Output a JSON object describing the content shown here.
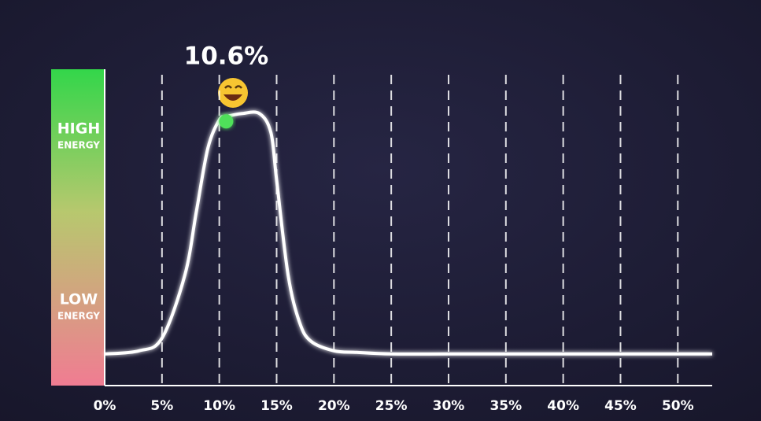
{
  "chart_data": {
    "type": "line",
    "high_label": [
      "HIGH",
      "ENERGY"
    ],
    "low_label": [
      "LOW",
      "ENERGY"
    ],
    "x": [
      0,
      3,
      5,
      7,
      8,
      9,
      10,
      10.6,
      12,
      13.5,
      14.5,
      15,
      16,
      17,
      18,
      20,
      22,
      25,
      30,
      35,
      40,
      45,
      50,
      53
    ],
    "values": [
      10,
      11,
      15,
      35,
      55,
      75,
      84,
      85,
      86,
      86,
      80,
      65,
      35,
      20,
      14,
      11,
      10.5,
      10,
      10,
      10,
      10,
      10,
      10,
      10
    ],
    "color": "#ffffff",
    "xlim": [
      0,
      53
    ],
    "ylim": [
      0,
      100
    ],
    "xticks": [
      {
        "value": 0,
        "label": "0%"
      },
      {
        "value": 5,
        "label": "5%"
      },
      {
        "value": 10,
        "label": "10%"
      },
      {
        "value": 15,
        "label": "15%"
      },
      {
        "value": 20,
        "label": "20%"
      },
      {
        "value": 25,
        "label": "25%"
      },
      {
        "value": 30,
        "label": "30%"
      },
      {
        "value": 35,
        "label": "35%"
      },
      {
        "value": 40,
        "label": "40%"
      },
      {
        "value": 45,
        "label": "45%"
      },
      {
        "value": 50,
        "label": "50%"
      }
    ],
    "grid": true,
    "highlight": {
      "x": 10.6,
      "y": 85,
      "label": "10.6%",
      "color": "#4fe05a"
    }
  }
}
